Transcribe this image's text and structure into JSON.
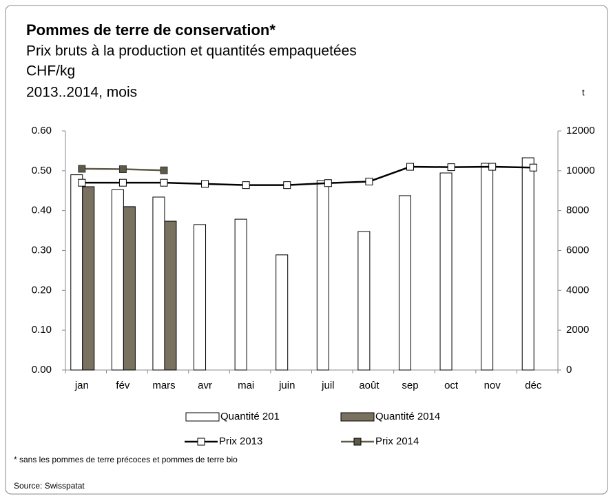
{
  "chart_data": {
    "type": "bar_line",
    "title": "Pommes de terre de conservation*",
    "subtitle": [
      "Prix bruts à la production et quantités empaquetées",
      "CHF/kg",
      "2013..2014, mois"
    ],
    "y2_label": "t",
    "categories": [
      "jan",
      "fév",
      "mars",
      "avr",
      "mai",
      "juin",
      "juil",
      "août",
      "sep",
      "oct",
      "nov",
      "déc"
    ],
    "series": [
      {
        "name": "Quantité 201",
        "kind": "bar",
        "axis": "y2",
        "color": "#ffffff",
        "values": [
          9800,
          9050,
          8680,
          7300,
          7570,
          5780,
          9510,
          6950,
          8750,
          9890,
          10375,
          10650
        ]
      },
      {
        "name": "Quantité 2014",
        "kind": "bar",
        "axis": "y2",
        "color": "#7a7261",
        "values": [
          9200,
          8200,
          7470,
          null,
          null,
          null,
          null,
          null,
          null,
          null,
          null,
          null
        ]
      },
      {
        "name": "Prix 2013",
        "kind": "line",
        "color": "#000000",
        "values": [
          0.47,
          0.47,
          0.47,
          0.467,
          0.464,
          0.464,
          0.469,
          0.473,
          0.51,
          0.509,
          0.51,
          0.508
        ]
      },
      {
        "name": "Prix 2014",
        "kind": "line",
        "color": "#5e5a48",
        "values": [
          0.505,
          0.504,
          0.501,
          null,
          null,
          null,
          null,
          null,
          null,
          null,
          null,
          null
        ]
      }
    ],
    "ylim": [
      0,
      0.6
    ],
    "yticks": [
      {
        "value": 0,
        "label": "0.00"
      },
      {
        "value": 0.1,
        "label": "0.10"
      },
      {
        "value": 0.2,
        "label": "0.20"
      },
      {
        "value": 0.3,
        "label": "0.30"
      },
      {
        "value": 0.4,
        "label": "0.40"
      },
      {
        "value": 0.5,
        "label": "0.50"
      },
      {
        "value": 0.6,
        "label": "0.60"
      }
    ],
    "y2lim": [
      0,
      12000
    ],
    "y2ticks": [
      0,
      2000,
      4000,
      6000,
      8000,
      10000,
      12000
    ],
    "notes": [
      "* sans les pommes de terre précoces et pommes de terre bio",
      "Source: Swisspatat"
    ]
  }
}
